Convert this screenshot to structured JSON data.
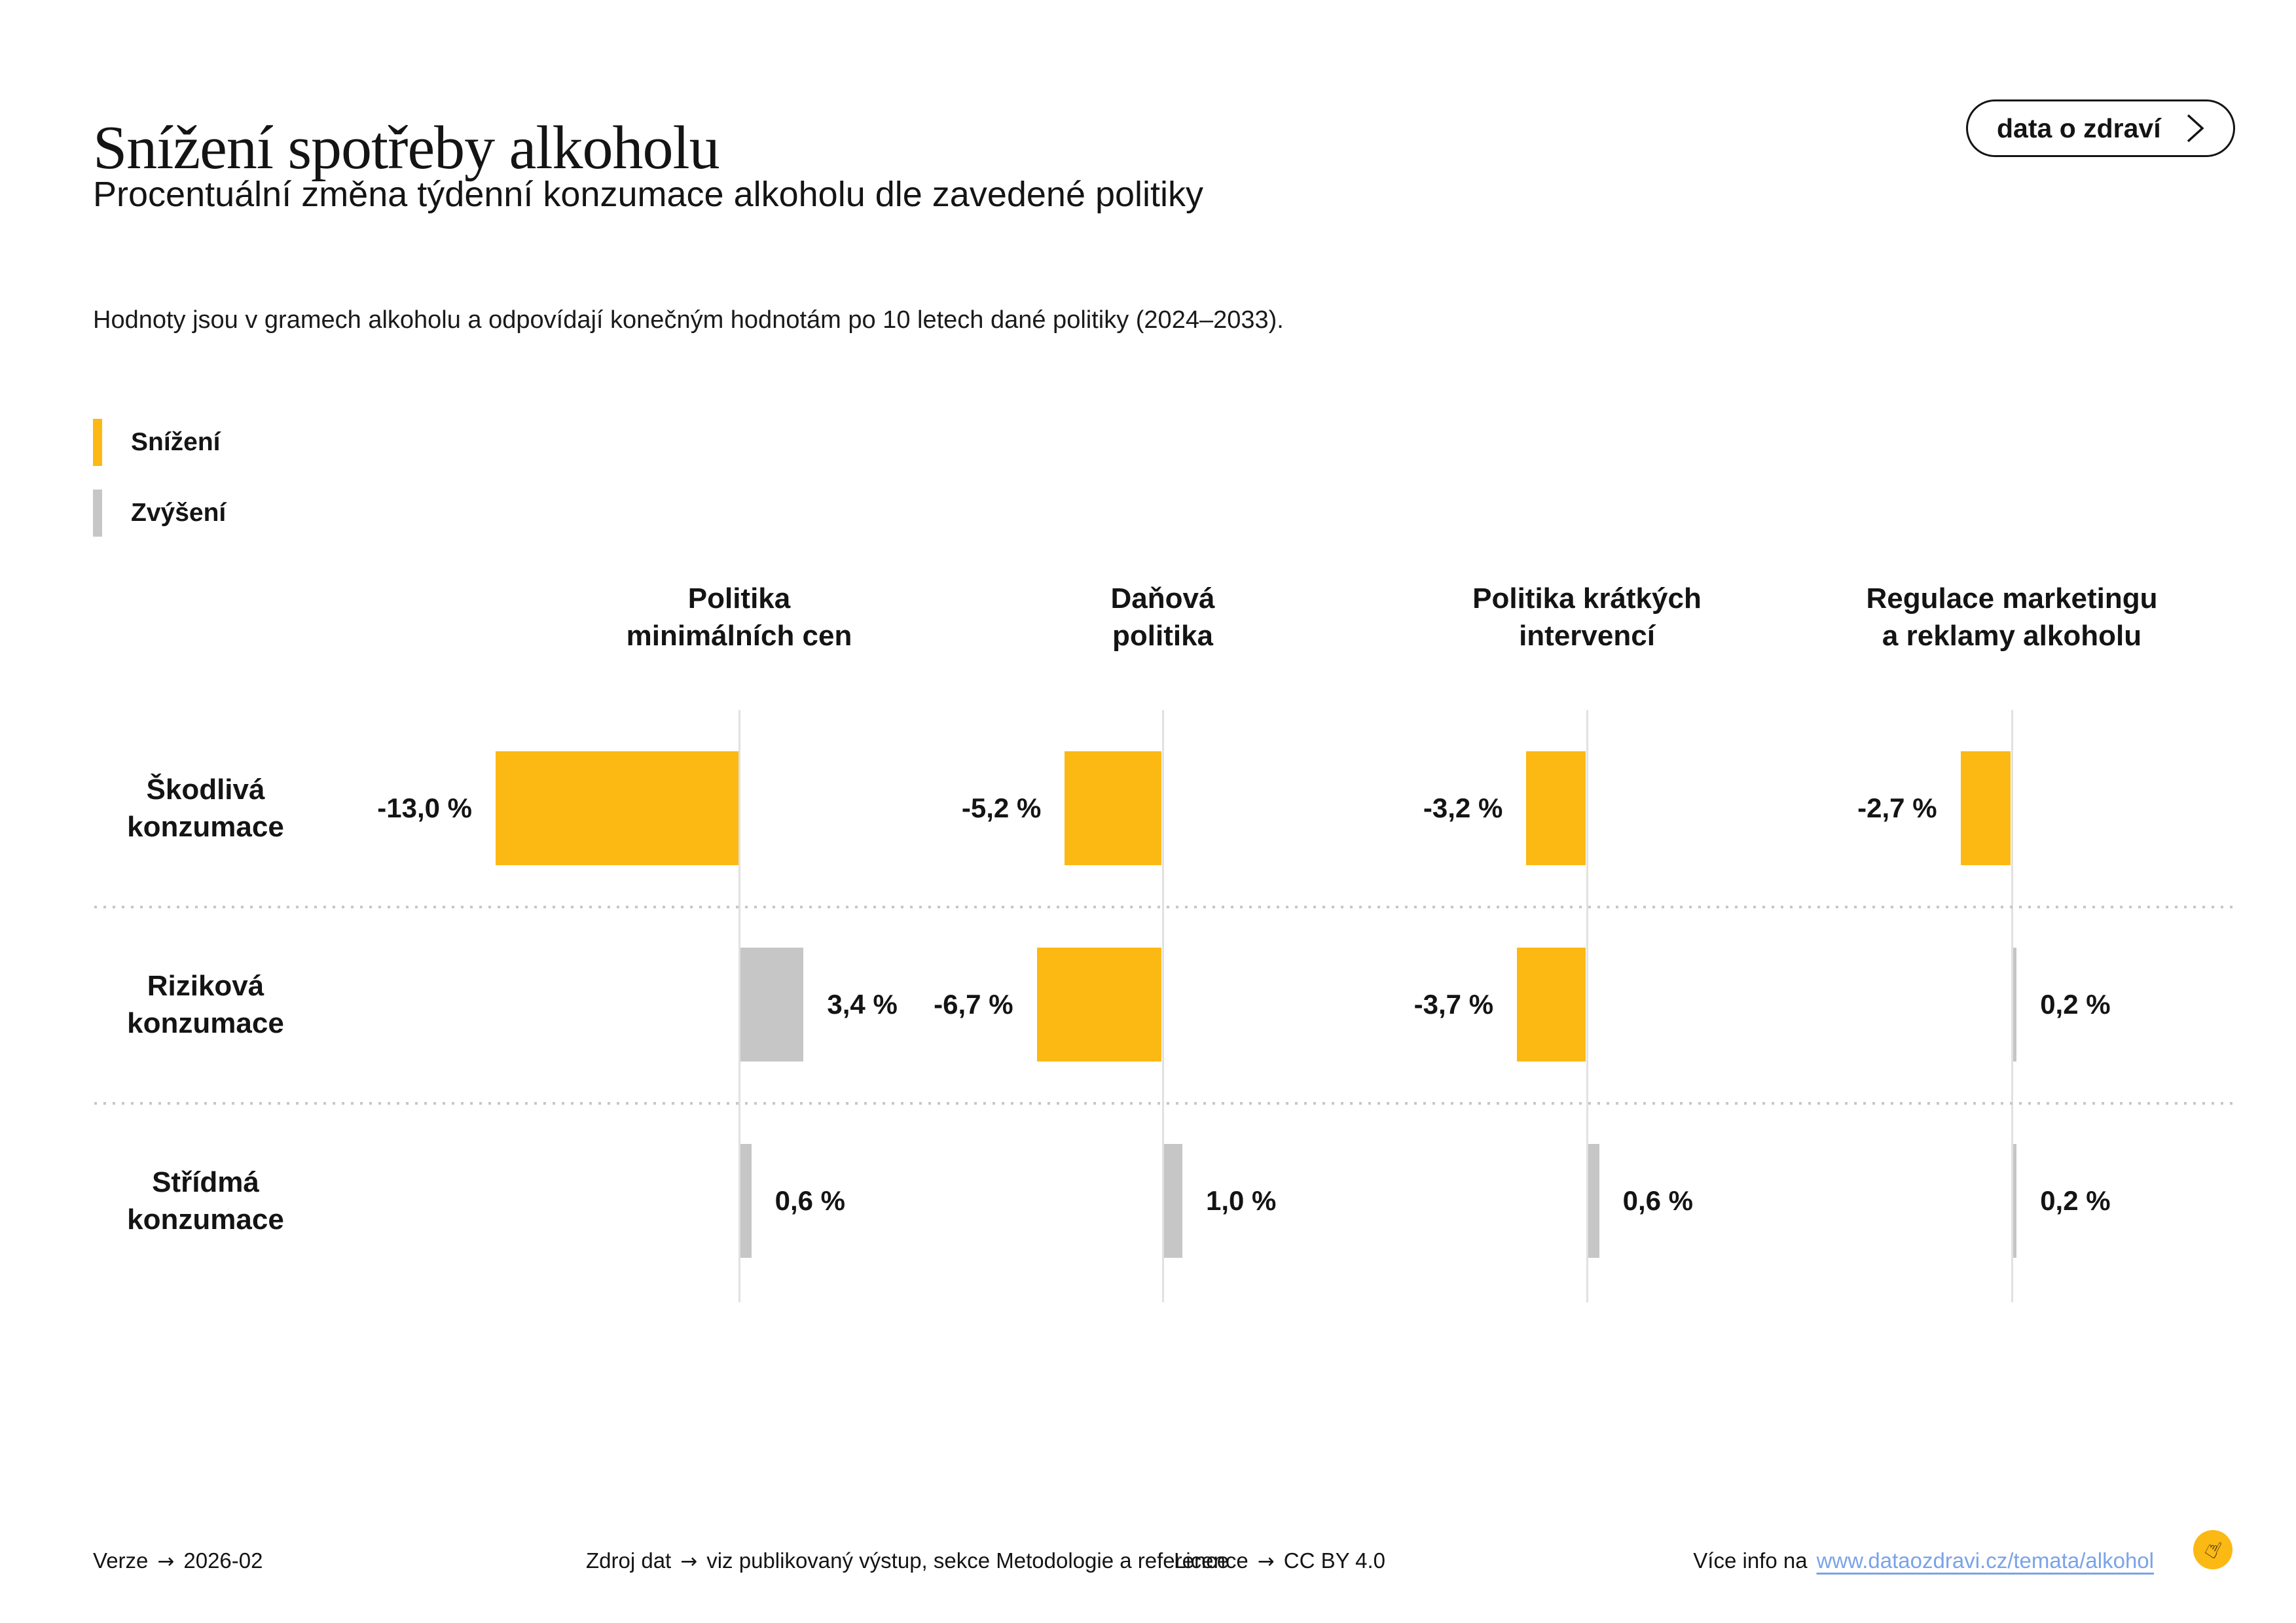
{
  "header": {
    "title": "Snížení spotřeby alkoholu",
    "subtitle": "Procentuální změna týdenní konzumace alkoholu dle zavedené politiky",
    "note": "Hodnoty jsou v gramech alkoholu a odpovídají konečným hodnotám po 10 letech dané politiky (2024–2033).",
    "link_button_label": "data o zdraví"
  },
  "legend": {
    "items": [
      {
        "label": "Snížení",
        "color": "#FCB813"
      },
      {
        "label": "Zvýšení",
        "color": "#C6C6C6"
      }
    ]
  },
  "chart_data": {
    "type": "bar",
    "orientation": "horizontal-diverging",
    "unit": "%",
    "decimal_separator": ",",
    "decrease_color": "#FCB813",
    "increase_color": "#C6C6C6",
    "columns": [
      "Politika\nminimálních cen",
      "Daňová\npolitika",
      "Politika krátkých\nintervencí",
      "Regulace marketingu\na reklamy alkoholu"
    ],
    "rows": [
      "Škodlivá\nkonzumace",
      "Riziková\nkonzumace",
      "Střídmá\nkonzumace"
    ],
    "series": [
      {
        "row": "Škodlivá konzumace",
        "values": [
          -13.0,
          -5.2,
          -3.2,
          -2.7
        ]
      },
      {
        "row": "Riziková konzumace",
        "values": [
          3.4,
          -6.7,
          -3.7,
          0.2
        ]
      },
      {
        "row": "Střídmá konzumace",
        "values": [
          0.6,
          1.0,
          0.6,
          0.2
        ]
      }
    ],
    "value_labels": [
      [
        "-13,0 %",
        "-5,2 %",
        "-3,2 %",
        "-2,7 %"
      ],
      [
        "3,4 %",
        "-6,7 %",
        "-3,7 %",
        "0,2 %"
      ],
      [
        "0,6 %",
        "1,0 %",
        "0,6 %",
        "0,2 %"
      ]
    ],
    "negative_means": "Snížení",
    "positive_means": "Zvýšení"
  },
  "footer": {
    "version_label": "Verze",
    "version_value": "2026-02",
    "source_label": "Zdroj dat",
    "source_value": "viz publikovaný výstup, sekce Metodologie a reference",
    "license_label": "Licence",
    "license_value": "CC BY 4.0",
    "info_text": "Více info na",
    "info_link": "www.dataozdravi.cz/temata/alkohol",
    "arrow": "→",
    "logo_icon": "pointing-hand-icon",
    "logo_color": "#FCB813"
  }
}
